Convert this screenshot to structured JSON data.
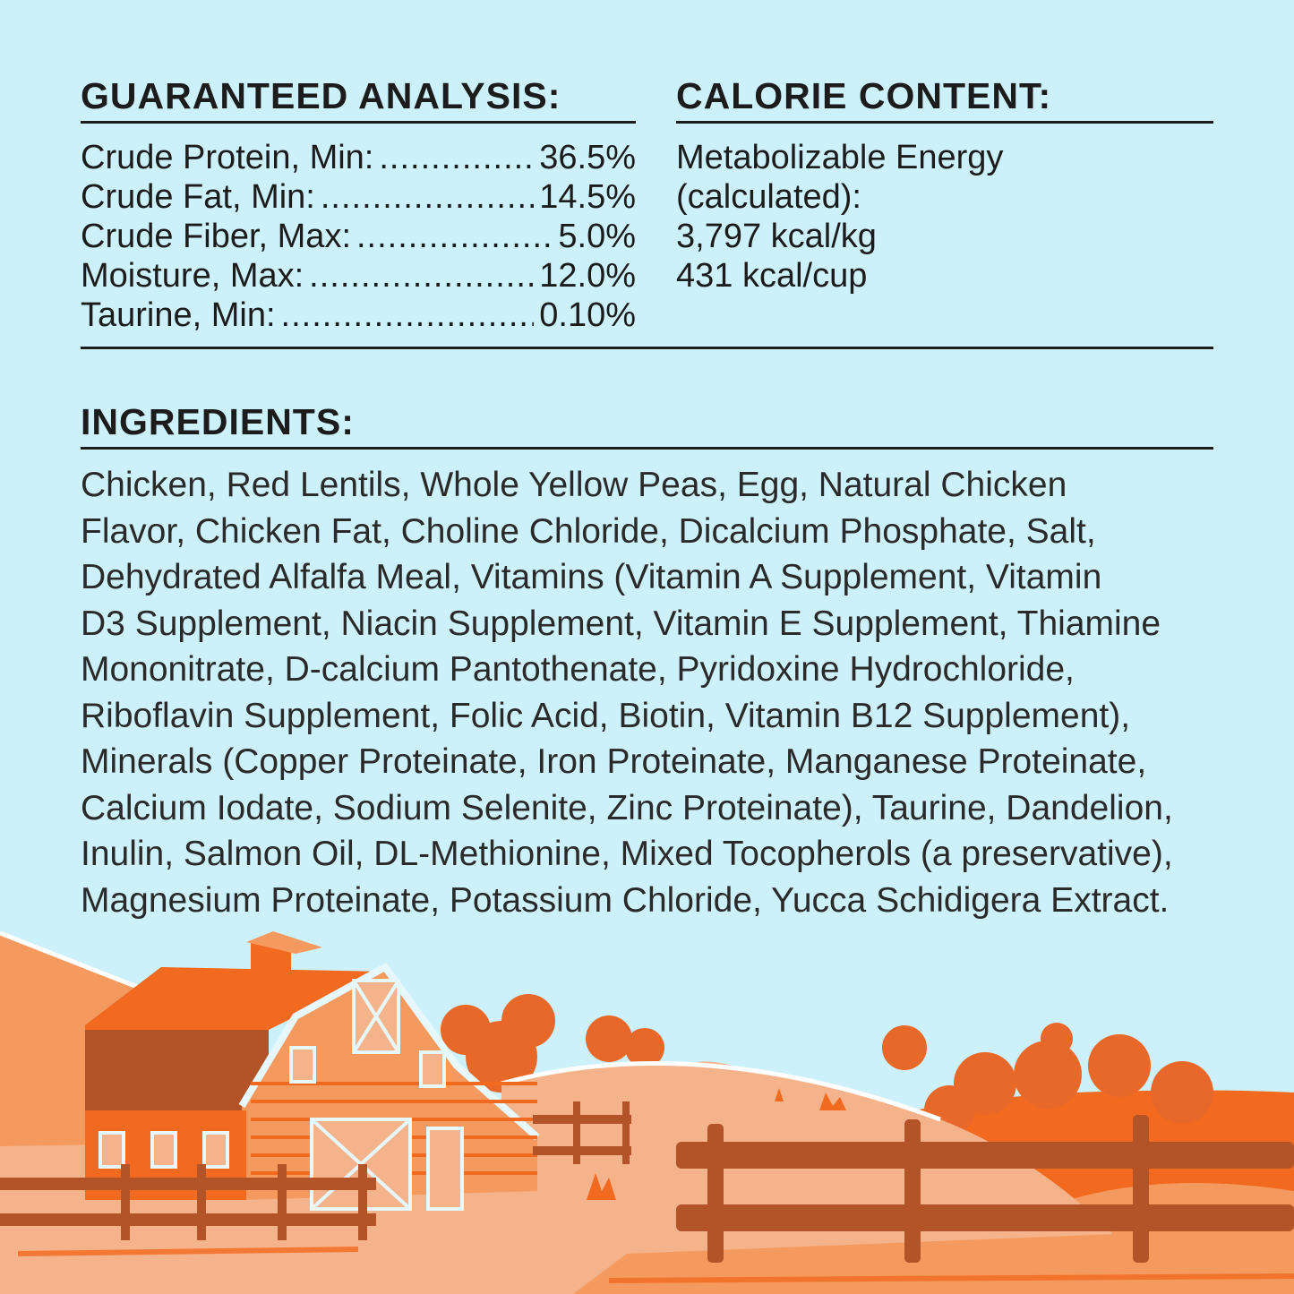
{
  "analysis": {
    "title": "GUARANTEED ANALYSIS:",
    "rows": [
      {
        "label": "Crude Protein, Min:",
        "value": "36.5%"
      },
      {
        "label": "Crude Fat, Min:",
        "value": "14.5%"
      },
      {
        "label": "Crude Fiber, Max:",
        "value": "5.0%"
      },
      {
        "label": "Moisture, Max:",
        "value": "12.0%"
      },
      {
        "label": "Taurine, Min:",
        "value": "0.10%"
      }
    ]
  },
  "calorie": {
    "title": "CALORIE CONTENT:",
    "lines": [
      "Metabolizable Energy",
      "(calculated):",
      "3,797 kcal/kg",
      "431 kcal/cup"
    ]
  },
  "ingredients": {
    "title": "INGREDIENTS:",
    "lines": [
      "Chicken, Red Lentils, Whole Yellow Peas, Egg, Natural Chicken",
      "Flavor, Chicken Fat, Choline Chloride, Dicalcium Phosphate, Salt,",
      "Dehydrated Alfalfa Meal, Vitamins (Vitamin A Supplement, Vitamin",
      "D3 Supplement, Niacin Supplement, Vitamin E Supplement, Thiamine",
      "Mononitrate, D-calcium Pantothenate, Pyridoxine Hydrochloride,",
      "Riboflavin Supplement, Folic Acid, Biotin, Vitamin B12 Supplement),",
      "Minerals (Copper Proteinate, Iron Proteinate, Manganese Proteinate,",
      "Calcium Iodate, Sodium Selenite, Zinc Proteinate), Taurine, Dandelion,",
      "Inulin, Salmon Oil, DL-Methionine, Mixed Tocopherols (a preservative),",
      "Magnesium Proteinate, Potassium Chloride, Yucca Schidigera Extract."
    ]
  },
  "colors": {
    "background": "#cdf1fb",
    "text": "#1c1c1c",
    "orange": "#f26a1f",
    "light_orange": "#f4b38a",
    "brown": "#b25427"
  },
  "illustration": {
    "icon": "farm-barn-landscape-icon"
  }
}
